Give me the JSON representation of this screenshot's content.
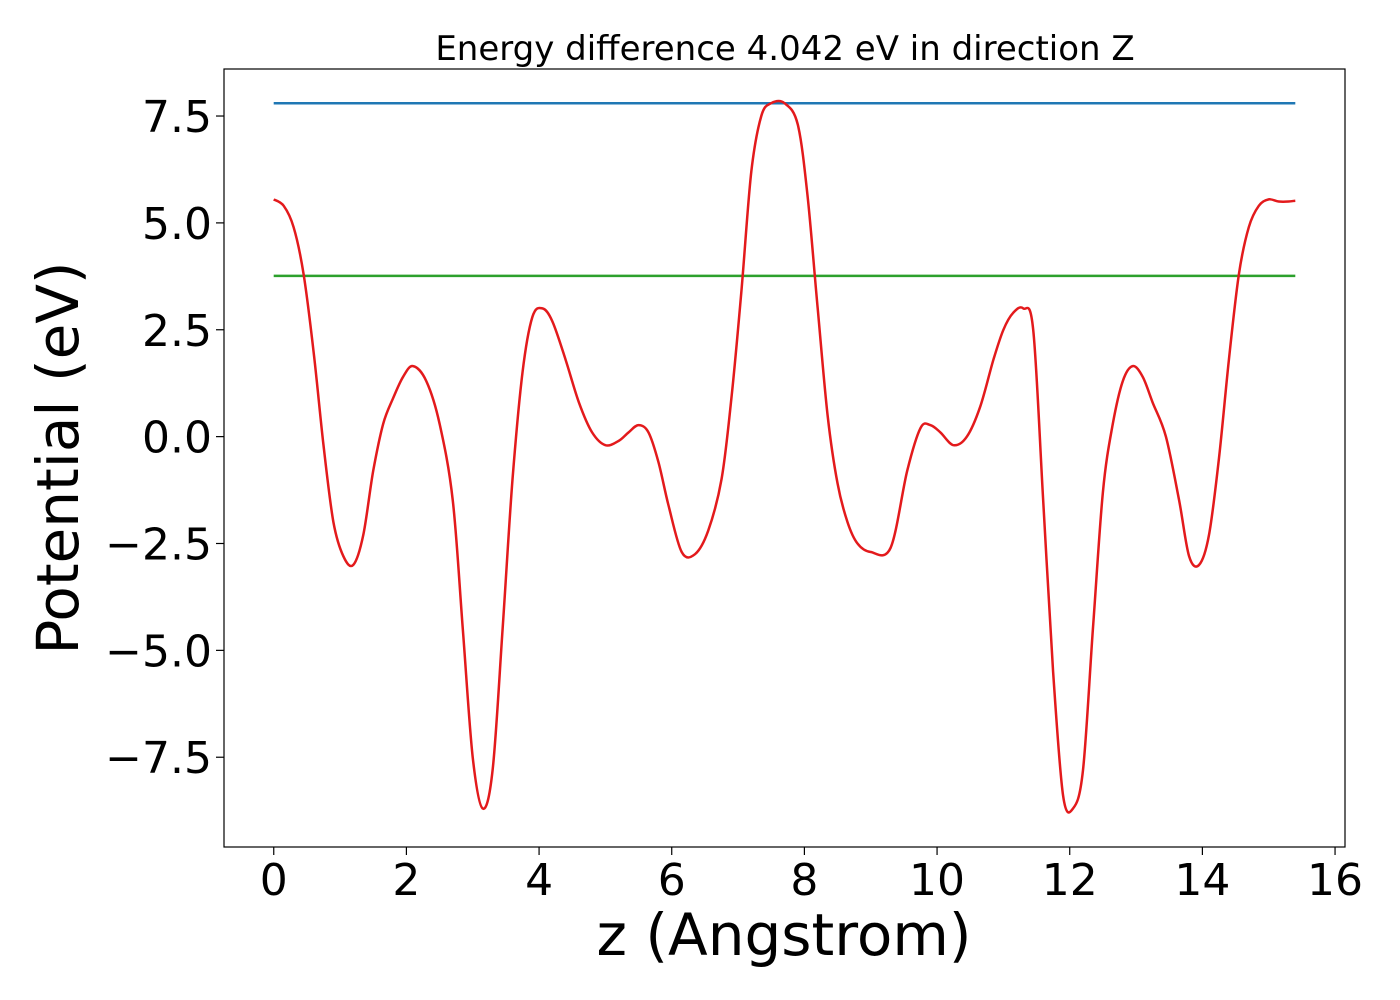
{
  "chart_data": {
    "type": "line",
    "title": "Energy difference 4.042 eV in direction Z",
    "xlabel": "z (Angstrom)",
    "ylabel": "Potential (eV)",
    "xlim": [
      -0.75,
      16.15
    ],
    "ylim": [
      -9.6,
      8.6
    ],
    "xticks": [
      0,
      2,
      4,
      6,
      8,
      10,
      12,
      14,
      16
    ],
    "xtick_labels": [
      "0",
      "2",
      "4",
      "6",
      "8",
      "10",
      "12",
      "14",
      "16"
    ],
    "yticks": [
      7.5,
      5.0,
      2.5,
      0.0,
      -2.5,
      -5.0,
      -7.5
    ],
    "ytick_labels": [
      "7.5",
      "5.0",
      "2.5",
      "0.0",
      "−2.5",
      "−5.0",
      "−7.5"
    ],
    "grid": false,
    "series": [
      {
        "color": "#1f77b4",
        "x": [
          0,
          15.4
        ],
        "y": [
          7.8,
          7.8
        ]
      },
      {
        "color": "#2ca02c",
        "x": [
          0,
          15.4
        ],
        "y": [
          3.76,
          3.76
        ]
      },
      {
        "color": "#e31a1c",
        "x": [
          0,
          0.15,
          0.3,
          0.45,
          0.6,
          0.75,
          0.9,
          1.05,
          1.2,
          1.35,
          1.5,
          1.65,
          1.8,
          1.95,
          2.1,
          2.3,
          2.5,
          2.7,
          2.85,
          3.0,
          3.15,
          3.3,
          3.45,
          3.6,
          3.75,
          3.9,
          4.05,
          4.2,
          4.4,
          4.6,
          4.8,
          5.0,
          5.2,
          5.35,
          5.5,
          5.65,
          5.8,
          5.95,
          6.15,
          6.35,
          6.55,
          6.75,
          6.9,
          7.05,
          7.2,
          7.35,
          7.5,
          7.7,
          7.9,
          8.05,
          8.2,
          8.35,
          8.5,
          8.65,
          8.8,
          9.0,
          9.3,
          9.55,
          9.75,
          9.9,
          10.05,
          10.25,
          10.45,
          10.65,
          10.85,
          11.0,
          11.15,
          11.3,
          11.45,
          11.6,
          11.75,
          11.9,
          12.05,
          12.2,
          12.35,
          12.5,
          12.65,
          12.8,
          12.95,
          13.1,
          13.25,
          13.45,
          13.65,
          13.8,
          13.95,
          14.1,
          14.25,
          14.4,
          14.55,
          14.7,
          14.85,
          15.0,
          15.15,
          15.3,
          15.4
        ],
        "y": [
          5.55,
          5.4,
          4.9,
          3.8,
          2.0,
          -0.2,
          -2.0,
          -2.8,
          -3.0,
          -2.3,
          -0.8,
          0.3,
          0.9,
          1.4,
          1.65,
          1.3,
          0.3,
          -1.5,
          -4.5,
          -7.5,
          -8.7,
          -7.8,
          -4.5,
          -1.0,
          1.5,
          2.8,
          3.0,
          2.7,
          1.8,
          0.8,
          0.1,
          -0.2,
          -0.1,
          0.1,
          0.27,
          0.1,
          -0.6,
          -1.6,
          -2.7,
          -2.75,
          -2.2,
          -1.0,
          0.9,
          3.4,
          6.2,
          7.5,
          7.8,
          7.8,
          7.3,
          5.6,
          3.0,
          0.5,
          -1.1,
          -2.0,
          -2.5,
          -2.7,
          -2.6,
          -0.8,
          0.2,
          0.27,
          0.1,
          -0.2,
          0.0,
          0.7,
          1.8,
          2.5,
          2.9,
          3.0,
          2.5,
          -1.5,
          -5.5,
          -8.4,
          -8.7,
          -7.8,
          -4.5,
          -1.3,
          0.3,
          1.3,
          1.65,
          1.4,
          0.8,
          0.0,
          -1.5,
          -2.8,
          -3.0,
          -2.3,
          -0.5,
          1.8,
          3.8,
          4.9,
          5.4,
          5.55,
          5.5,
          5.5,
          5.52
        ]
      }
    ]
  }
}
